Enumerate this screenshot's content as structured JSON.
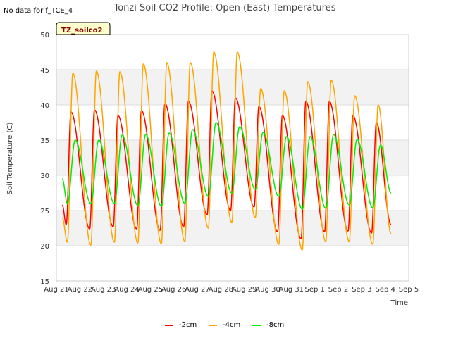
{
  "note": "No data for f_TCE_4",
  "badge": "TZ_soilco2",
  "chart_data": {
    "type": "line",
    "title": "Tonzi Soil CO2 Profile: Open (East) Temperatures",
    "xlabel": "Time",
    "ylabel": "Soil Temperature (C)",
    "xlim": [
      0,
      15
    ],
    "ylim": [
      15,
      50
    ],
    "yticks": [
      15,
      20,
      25,
      30,
      35,
      40,
      45,
      50
    ],
    "xticks": [
      "Aug 21",
      "Aug 22",
      "Aug 23",
      "Aug 24",
      "Aug 25",
      "Aug 26",
      "Aug 27",
      "Aug 28",
      "Aug 29",
      "Aug 30",
      "Aug 31",
      "Sep 1",
      "Sep 2",
      "Sep 3",
      "Sep 4",
      "Sep 5"
    ],
    "grid": true,
    "legend_position": "bottom",
    "series": [
      {
        "name": "-2cm",
        "color": "#ff0000",
        "start": 0.25,
        "end": 14.25,
        "peak_phase": 0.62,
        "rise_hours": 0.2,
        "start_value": 25.8,
        "highs": [
          39,
          39.3,
          38.5,
          39.2,
          40.2,
          40.5,
          42,
          41,
          39.8,
          38.5,
          40.5,
          40.5,
          38.5,
          37.5
        ],
        "lows": [
          23,
          22.4,
          22.7,
          22.4,
          22.2,
          22.7,
          24.4,
          25,
          25.5,
          22,
          21,
          22,
          22.1,
          21.8,
          23
        ]
      },
      {
        "name": "-4cm",
        "color": "#ffa500",
        "start": 0.25,
        "end": 14.25,
        "peak_phase": 0.7,
        "rise_hours": 0.23,
        "start_value": 24,
        "highs": [
          44.5,
          44.8,
          44.7,
          45.8,
          46,
          46,
          47.5,
          47.5,
          42.3,
          42,
          43.3,
          43.5,
          41.3,
          40
        ],
        "lows": [
          20.5,
          20.1,
          20.5,
          20.4,
          20.3,
          20.6,
          22.5,
          23.3,
          24,
          20.2,
          19.4,
          20.6,
          20.6,
          20.2,
          21.7
        ]
      },
      {
        "name": "-8cm",
        "color": "#00ee00",
        "start": 0.25,
        "end": 14.25,
        "peak_phase": 0.8,
        "rise_hours": 0.33,
        "start_value": 29.5,
        "highs": [
          35,
          35,
          35.7,
          35.8,
          36,
          36.5,
          37.5,
          36.9,
          36.1,
          35.5,
          35.5,
          35.8,
          35.1,
          34.3
        ],
        "lows": [
          26,
          26,
          26,
          25.7,
          25.6,
          26,
          27,
          27.5,
          28,
          27,
          25.2,
          25.3,
          25.8,
          25.4,
          27.5
        ]
      }
    ]
  }
}
